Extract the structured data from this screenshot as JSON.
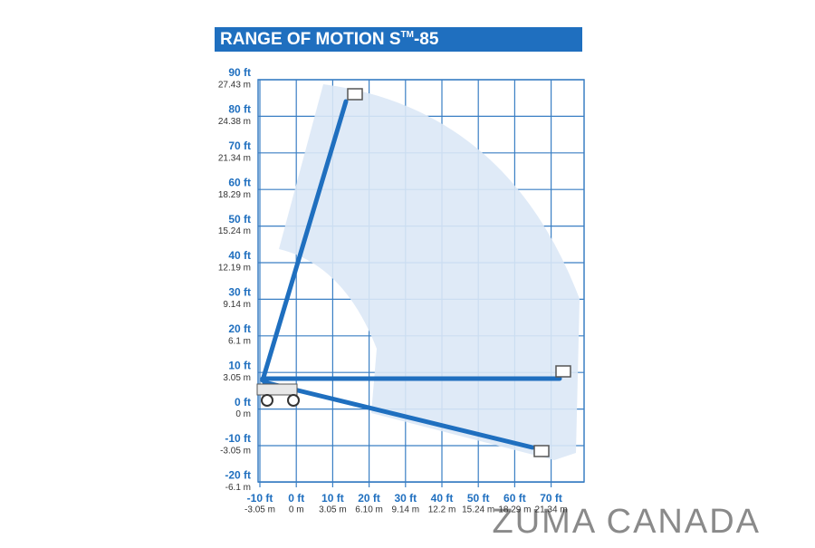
{
  "title": {
    "main": "RANGE OF MOTION S",
    "sup": "TM",
    "end": "-85"
  },
  "y_labels": [
    {
      "ft": "90 ft",
      "m": "27.43 m"
    },
    {
      "ft": "80 ft",
      "m": "24.38 m"
    },
    {
      "ft": "70 ft",
      "m": "21.34 m"
    },
    {
      "ft": "60 ft",
      "m": "18.29 m"
    },
    {
      "ft": "50 ft",
      "m": "15.24 m"
    },
    {
      "ft": "40 ft",
      "m": "12.19 m"
    },
    {
      "ft": "30 ft",
      "m": "9.14 m"
    },
    {
      "ft": "20 ft",
      "m": "6.1 m"
    },
    {
      "ft": "10 ft",
      "m": "3.05 m"
    },
    {
      "ft": "0 ft",
      "m": "0 m"
    },
    {
      "ft": "-10 ft",
      "m": "-3.05 m"
    },
    {
      "ft": "-20 ft",
      "m": "-6.1 m"
    }
  ],
  "x_labels": [
    {
      "ft": "-10 ft",
      "m": "-3.05 m"
    },
    {
      "ft": "0 ft",
      "m": "0 m"
    },
    {
      "ft": "10 ft",
      "m": "3.05 m"
    },
    {
      "ft": "20 ft",
      "m": "6.10 m"
    },
    {
      "ft": "30 ft",
      "m": "9.14 m"
    },
    {
      "ft": "40 ft",
      "m": "12.2 m"
    },
    {
      "ft": "50 ft",
      "m": "15.24 m"
    },
    {
      "ft": "60 ft",
      "m": "18.29 m"
    },
    {
      "ft": "70 ft",
      "m": "21.34 m"
    }
  ],
  "watermark": "ZUMA CANADA"
}
